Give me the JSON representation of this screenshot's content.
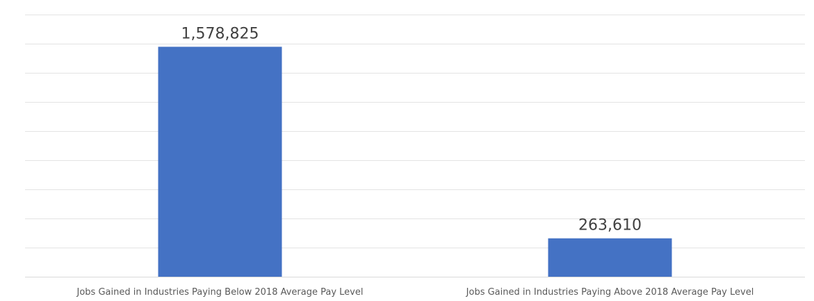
{
  "chart_data": {
    "type": "bar",
    "categories": [
      "Jobs Gained in Industries Paying Below 2018 Average Pay Level",
      "Jobs Gained in Industries Paying Above 2018 Average Pay Level"
    ],
    "values": [
      1578825,
      263610
    ],
    "data_labels": [
      "1,578,825",
      "263,610"
    ],
    "title": "",
    "xlabel": "",
    "ylabel": "",
    "ylim": [
      0,
      1800000
    ],
    "y_ticks": [
      0,
      200000,
      400000,
      600000,
      800000,
      1000000,
      1200000,
      1400000,
      1600000,
      1800000
    ],
    "y_tick_labels_visible": false,
    "grid": true,
    "legend": "none",
    "bar_color": "#4472C4"
  }
}
